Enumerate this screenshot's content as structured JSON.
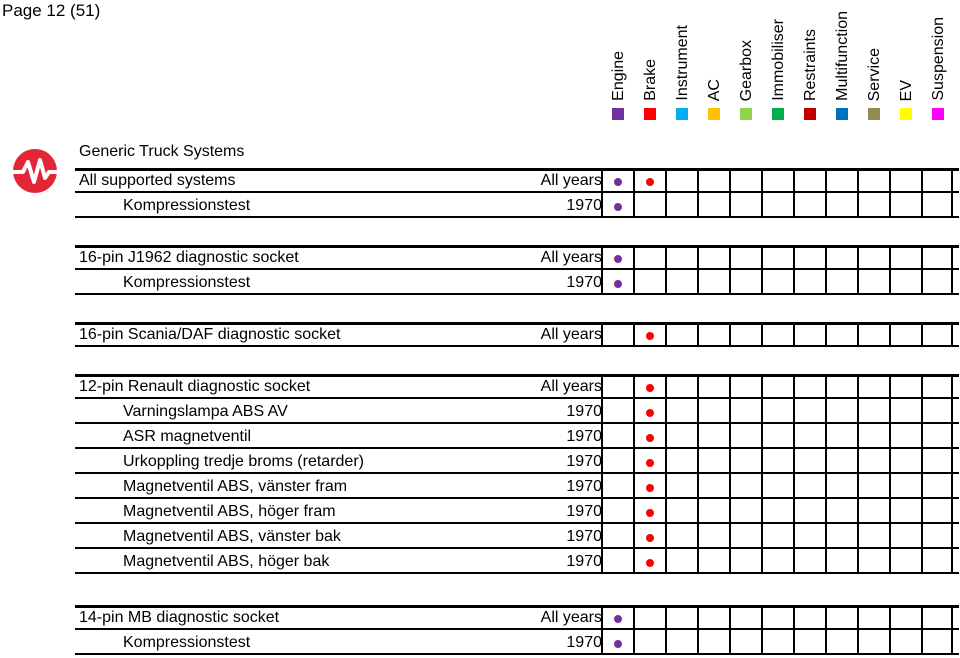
{
  "page_label": "Page 12 (51)",
  "columns": [
    {
      "label": "Engine",
      "color": "#7030a0"
    },
    {
      "label": "Brake",
      "color": "#ff0000"
    },
    {
      "label": "Instrument",
      "color": "#00b0f0"
    },
    {
      "label": "AC",
      "color": "#ffc000"
    },
    {
      "label": "Gearbox",
      "color": "#92d050"
    },
    {
      "label": "Immobiliser",
      "color": "#00b050"
    },
    {
      "label": "Restraints",
      "color": "#c00000"
    },
    {
      "label": "Multifunction",
      "color": "#0070c0"
    },
    {
      "label": "Service",
      "color": "#948a54"
    },
    {
      "label": "EV",
      "color": "#ffff00"
    },
    {
      "label": "Suspension",
      "color": "#ff00ff"
    }
  ],
  "logo_icon": "ecg-pulse-logo",
  "group_title": "Generic Truck Systems",
  "sections": [
    {
      "title": "",
      "rows": [
        {
          "name": "All supported systems",
          "years": "All years",
          "marks": [
            0,
            1
          ]
        },
        {
          "name": "Kompressionstest",
          "years": "1970",
          "marks": [
            0
          ]
        }
      ]
    },
    {
      "title": "",
      "rows": [
        {
          "name": "16-pin J1962 diagnostic socket",
          "years": "All years",
          "marks": [
            0
          ]
        },
        {
          "name": "Kompressionstest",
          "years": "1970",
          "marks": [
            0
          ]
        }
      ]
    },
    {
      "title": "",
      "rows": [
        {
          "name": "16-pin Scania/DAF diagnostic socket",
          "years": "All years",
          "marks": [
            1
          ]
        }
      ]
    },
    {
      "title": "",
      "rows": [
        {
          "name": "12-pin Renault diagnostic socket",
          "years": "All years",
          "marks": [
            1
          ]
        },
        {
          "name": "Varningslampa ABS AV",
          "years": "1970",
          "marks": [
            1
          ]
        },
        {
          "name": "ASR magnetventil",
          "years": "1970",
          "marks": [
            1
          ]
        },
        {
          "name": "Urkoppling tredje broms (retarder)",
          "years": "1970",
          "marks": [
            1
          ]
        },
        {
          "name": "Magnetventil ABS, vänster fram",
          "years": "1970",
          "marks": [
            1
          ]
        },
        {
          "name": "Magnetventil ABS, höger fram",
          "years": "1970",
          "marks": [
            1
          ]
        },
        {
          "name": "Magnetventil ABS, vänster bak",
          "years": "1970",
          "marks": [
            1
          ]
        },
        {
          "name": "Magnetventil ABS, höger bak",
          "years": "1970",
          "marks": [
            1
          ]
        }
      ]
    },
    {
      "title": "",
      "rows": [
        {
          "name": "14-pin MB diagnostic socket",
          "years": "All years",
          "marks": [
            0
          ]
        },
        {
          "name": "Kompressionstest",
          "years": "1970",
          "marks": [
            0
          ]
        }
      ]
    }
  ]
}
